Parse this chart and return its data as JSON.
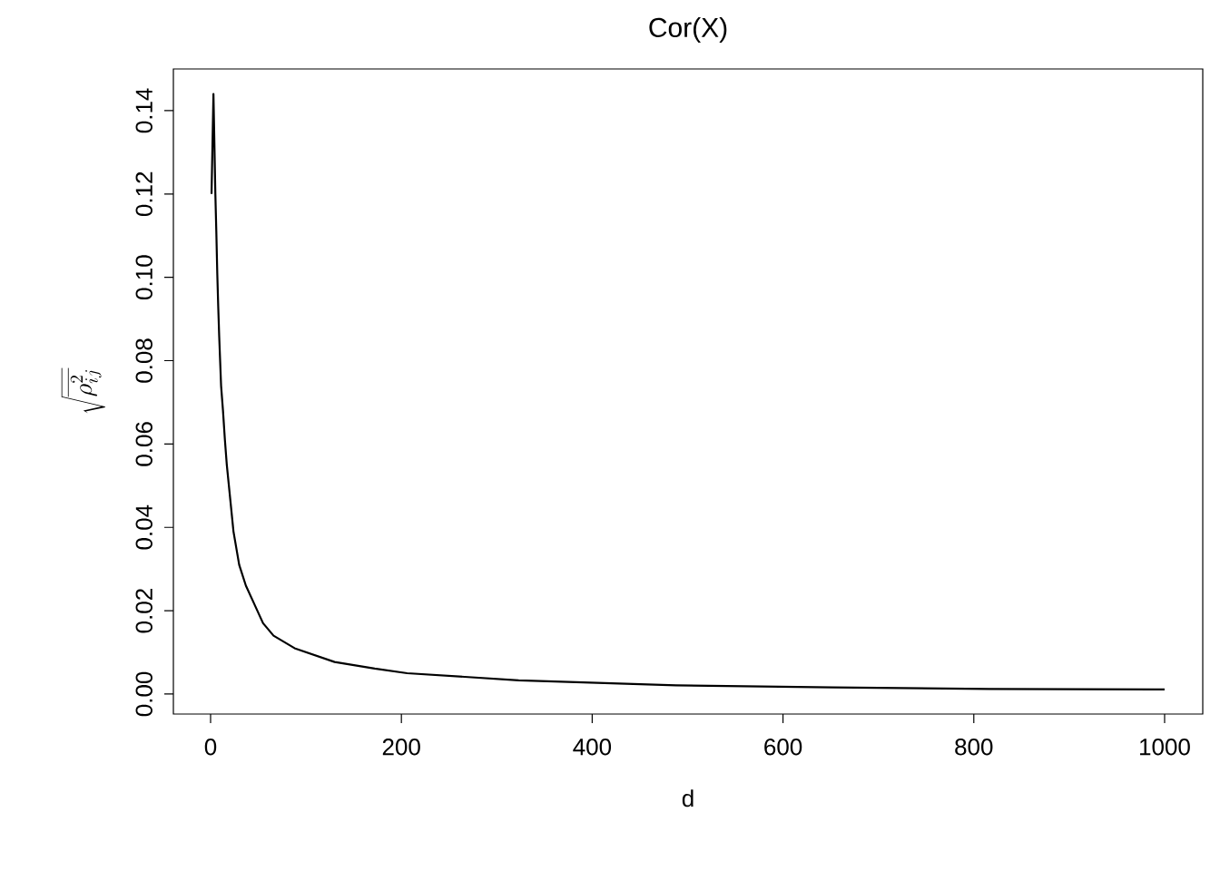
{
  "chart_data": {
    "type": "line",
    "title": "Cor(X)",
    "xlabel": "d",
    "ylabel": "\\sqrt{\\overline{\\rho_{ij}^{2}}}",
    "series": [
      {
        "color": "#000000",
        "x": [
          1,
          3,
          5,
          6,
          7,
          8,
          9,
          10,
          11,
          13,
          15,
          17,
          24,
          30,
          37,
          45,
          55,
          66,
          88,
          130,
          172,
          206,
          323,
          488,
          652,
          816,
          1000
        ],
        "values": [
          0.12,
          0.144,
          0.12,
          0.111,
          0.101,
          0.093,
          0.086,
          0.08,
          0.074,
          0.068,
          0.061,
          0.055,
          0.039,
          0.031,
          0.026,
          0.022,
          0.017,
          0.014,
          0.011,
          0.0077,
          0.0061,
          0.005,
          0.0033,
          0.0021,
          0.0016,
          0.0012,
          0.0011
        ]
      }
    ],
    "xlim": [
      -39,
      1040
    ],
    "ylim": [
      -0.0048,
      0.15
    ],
    "xticks": [
      0,
      200,
      400,
      600,
      800,
      1000
    ],
    "yticks": [
      {
        "value": 0,
        "label": "0.00"
      },
      {
        "value": 0.02,
        "label": "0.02"
      },
      {
        "value": 0.04,
        "label": "0.04"
      },
      {
        "value": 0.06,
        "label": "0.06"
      },
      {
        "value": 0.08,
        "label": "0.08"
      },
      {
        "value": 0.1,
        "label": "0.10"
      },
      {
        "value": 0.12,
        "label": "0.12"
      },
      {
        "value": 0.14,
        "label": "0.14"
      }
    ],
    "marker": "none",
    "line_style": "solid"
  }
}
